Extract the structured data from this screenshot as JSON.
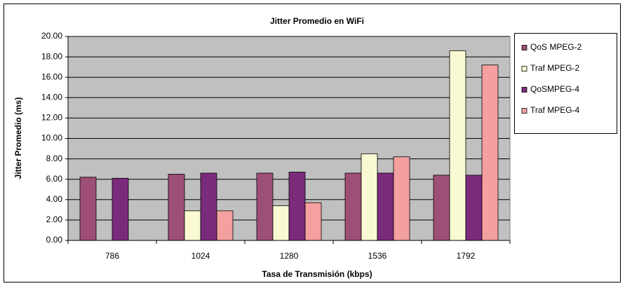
{
  "chart_data": {
    "type": "bar",
    "title": "Jitter Promedio en WiFi",
    "x_label": "Tasa de Transmisión (kbps)",
    "y_label": "Jitter Promedio (ms)",
    "categories": [
      "786",
      "1024",
      "1280",
      "1536",
      "1792"
    ],
    "series": [
      {
        "name": "QoS MPEG-2",
        "color": "#9e4f77",
        "values": [
          6.2,
          6.5,
          6.6,
          6.6,
          6.4
        ]
      },
      {
        "name": "Traf MPEG-2",
        "color": "#fafad2",
        "values": [
          null,
          2.9,
          3.4,
          8.5,
          18.6
        ]
      },
      {
        "name": "QoSMPEG-4",
        "color": "#7b2b7b",
        "values": [
          6.1,
          6.6,
          6.7,
          6.6,
          6.4
        ]
      },
      {
        "name": "Traf MPEG-4",
        "color": "#f4a0a0",
        "values": [
          null,
          2.9,
          3.7,
          8.2,
          17.2
        ]
      }
    ],
    "ylim": [
      0,
      20
    ],
    "yticks": [
      {
        "value": 0,
        "label": "0.00"
      },
      {
        "value": 2,
        "label": "2.00"
      },
      {
        "value": 4,
        "label": "4.00"
      },
      {
        "value": 6,
        "label": "6.00"
      },
      {
        "value": 8,
        "label": "8.00"
      },
      {
        "value": 10,
        "label": "10.00"
      },
      {
        "value": 12,
        "label": "12.00"
      },
      {
        "value": 14,
        "label": "14.00"
      },
      {
        "value": 16,
        "label": "16.00"
      },
      {
        "value": 18,
        "label": "18.00"
      },
      {
        "value": 20,
        "label": "20.00"
      }
    ],
    "grid": true,
    "legend": "right"
  }
}
